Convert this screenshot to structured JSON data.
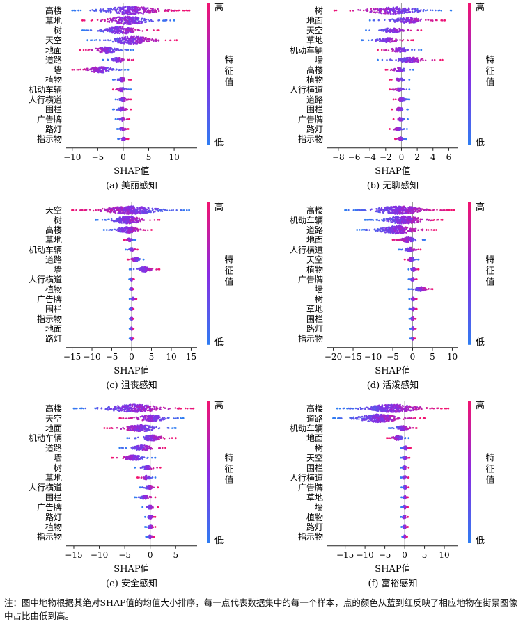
{
  "colors": {
    "low": "#2e7df2",
    "high": "#f2136f",
    "mid": "#8a2be2",
    "zero": "#9a9a9a"
  },
  "legend": {
    "high": "高",
    "low": "低",
    "title": "特征值"
  },
  "note": "注：图中地物根据其绝对SHAP值的均值大小排序，每一点代表数据集中的每一个样本，点的颜色从蓝到红反映了相应地物在街景图像中占比由低到高。",
  "chart_data": [
    {
      "type": "scatter",
      "caption": "(a) 美丽感知",
      "xlabel": "SHAP值",
      "xticks": [
        -10,
        -5,
        0,
        5,
        10
      ],
      "xlim": [
        -11.2,
        14.5
      ],
      "features": [
        "高楼",
        "草地",
        "树",
        "天空",
        "地面",
        "道路",
        "墙",
        "植物",
        "机动车辆",
        "人行横道",
        "围栏",
        "广告牌",
        "路灯",
        "指示物"
      ],
      "ranges": [
        [
          -10,
          13
        ],
        [
          -8,
          10
        ],
        [
          -8,
          7
        ],
        [
          -7,
          10.5
        ],
        [
          -8.5,
          2
        ],
        [
          -4,
          2
        ],
        [
          -10,
          1
        ],
        [
          -2,
          1.5
        ],
        [
          -2,
          1.5
        ],
        [
          -1.5,
          1.5
        ],
        [
          -2,
          1.5
        ],
        [
          -1.5,
          1.2
        ],
        [
          -1.2,
          1
        ],
        [
          -1,
          1
        ]
      ],
      "direction": [
        1,
        -1,
        1,
        1,
        -1,
        1,
        -1,
        1,
        -1,
        1,
        1,
        1,
        1,
        1
      ]
    },
    {
      "type": "scatter",
      "caption": "(b) 无聊感知",
      "xlabel": "SHAP值",
      "xticks": [
        -8,
        -6,
        -4,
        -2,
        0,
        2,
        4,
        6
      ],
      "xlim": [
        -9.4,
        7.2
      ],
      "features": [
        "树",
        "地面",
        "天空",
        "草地",
        "机动车辆",
        "墙",
        "高楼",
        "植物",
        "人行横道",
        "道路",
        "围栏",
        "广告牌",
        "路灯",
        "指示物"
      ],
      "ranges": [
        [
          -8.5,
          6.3
        ],
        [
          -4,
          5.5
        ],
        [
          -4.5,
          2.5
        ],
        [
          -5,
          1.5
        ],
        [
          -3,
          2.5
        ],
        [
          -3,
          5.2
        ],
        [
          -2,
          1.5
        ],
        [
          -1.5,
          1
        ],
        [
          -1.5,
          1
        ],
        [
          -1,
          1
        ],
        [
          -1.2,
          0.8
        ],
        [
          -1,
          0.8
        ],
        [
          -1.5,
          0.7
        ],
        [
          -0.8,
          0.6
        ]
      ],
      "direction": [
        -1,
        1,
        1,
        1,
        -1,
        1,
        -1,
        -1,
        -1,
        -1,
        -1,
        -1,
        -1,
        -1
      ]
    },
    {
      "type": "scatter",
      "caption": "(c) 沮丧感知",
      "xlabel": "SHAP值",
      "xticks": [
        -15,
        -10,
        -5,
        0,
        5,
        10,
        15
      ],
      "xlim": [
        -16.5,
        16.5
      ],
      "features": [
        "天空",
        "树",
        "高楼",
        "草地",
        "机动车辆",
        "道路",
        "墙",
        "人行横道",
        "植物",
        "广告牌",
        "围栏",
        "指示物",
        "地面",
        "路灯"
      ],
      "ranges": [
        [
          -15,
          14.5
        ],
        [
          -9,
          7
        ],
        [
          -7,
          5
        ],
        [
          -2,
          1
        ],
        [
          -1.5,
          1.5
        ],
        [
          -1,
          3
        ],
        [
          -0.5,
          7
        ],
        [
          -0.6,
          0.6
        ],
        [
          -0.5,
          0.5
        ],
        [
          -0.5,
          1.2
        ],
        [
          -0.5,
          0.5
        ],
        [
          -0.5,
          0.5
        ],
        [
          -0.5,
          0.5
        ],
        [
          -0.5,
          0.5
        ]
      ],
      "direction": [
        -1,
        1,
        1,
        -1,
        1,
        -1,
        1,
        1,
        1,
        1,
        1,
        1,
        1,
        1
      ]
    },
    {
      "type": "scatter",
      "caption": "(d) 活泼感知",
      "xlabel": "SHAP值",
      "xticks": [
        -20,
        -15,
        -10,
        -5,
        0,
        5,
        10
      ],
      "xlim": [
        -21.5,
        11.5
      ],
      "features": [
        "高楼",
        "机动车辆",
        "道路",
        "地面",
        "人行横道",
        "天空",
        "植物",
        "广告牌",
        "墙",
        "树",
        "草地",
        "围栏",
        "路灯",
        "指示物"
      ],
      "ranges": [
        [
          -17,
          10.5
        ],
        [
          -12,
          7.5
        ],
        [
          -14,
          6
        ],
        [
          -5,
          3
        ],
        [
          -3.5,
          2
        ],
        [
          -2,
          1.5
        ],
        [
          -1,
          1.5
        ],
        [
          -1,
          1
        ],
        [
          -1,
          5
        ],
        [
          -0.8,
          1
        ],
        [
          -0.8,
          1
        ],
        [
          -0.8,
          0.8
        ],
        [
          -0.6,
          0.8
        ],
        [
          -0.6,
          0.6
        ]
      ],
      "direction": [
        1,
        1,
        1,
        -1,
        1,
        -1,
        1,
        1,
        1,
        1,
        1,
        1,
        1,
        1
      ]
    },
    {
      "type": "scatter",
      "caption": "(e) 安全感知",
      "xlabel": "SHAP值",
      "xticks": [
        -15,
        -10,
        -5,
        0,
        5
      ],
      "xlim": [
        -16.5,
        9.2
      ],
      "features": [
        "高楼",
        "天空",
        "地面",
        "机动车辆",
        "道路",
        "墙",
        "树",
        "草地",
        "人行横道",
        "围栏",
        "广告牌",
        "路灯",
        "植物",
        "指示物"
      ],
      "ranges": [
        [
          -15,
          8.5
        ],
        [
          -6,
          6.5
        ],
        [
          -9,
          5
        ],
        [
          -4.5,
          5
        ],
        [
          -6,
          3
        ],
        [
          -7.5,
          1
        ],
        [
          -3,
          2
        ],
        [
          -2.5,
          1
        ],
        [
          -2,
          1.5
        ],
        [
          -3,
          1
        ],
        [
          -1.5,
          1.5
        ],
        [
          -1,
          1
        ],
        [
          -1,
          1
        ],
        [
          -0.8,
          0.8
        ]
      ],
      "direction": [
        1,
        -1,
        -1,
        1,
        1,
        -1,
        1,
        -1,
        1,
        1,
        1,
        1,
        1,
        1
      ]
    },
    {
      "type": "scatter",
      "caption": "(f) 富裕感知",
      "xlabel": "SHAP值",
      "xticks": [
        -15,
        -10,
        -5,
        0,
        5,
        10
      ],
      "xlim": [
        -19.5,
        13.5
      ],
      "features": [
        "高楼",
        "道路",
        "机动车辆",
        "地面",
        "树",
        "天空",
        "围栏",
        "人行横道",
        "广告牌",
        "草地",
        "墙",
        "植物",
        "路灯",
        "指示物"
      ],
      "ranges": [
        [
          -17,
          11
        ],
        [
          -18,
          5
        ],
        [
          -4,
          3
        ],
        [
          -4.5,
          1
        ],
        [
          -1,
          1.5
        ],
        [
          -1,
          1.2
        ],
        [
          -1,
          1
        ],
        [
          -1,
          1
        ],
        [
          -0.8,
          1
        ],
        [
          -0.8,
          0.8
        ],
        [
          -0.8,
          0.8
        ],
        [
          -1,
          0.8
        ],
        [
          -0.8,
          0.8
        ],
        [
          -0.6,
          0.6
        ]
      ],
      "direction": [
        1,
        1,
        1,
        -1,
        1,
        1,
        1,
        1,
        1,
        1,
        1,
        1,
        1,
        1
      ]
    }
  ]
}
